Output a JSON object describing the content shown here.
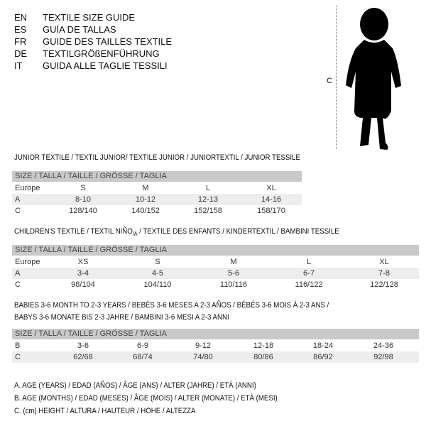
{
  "languages": [
    {
      "code": "EN",
      "title": "TEXTILE SIZE GUIDE"
    },
    {
      "code": "ES",
      "title": "GUÍA DE TALLAS"
    },
    {
      "code": "FR",
      "title": "GUIDE DES TAILLES TEXTILE"
    },
    {
      "code": "DE",
      "title": "TEXTILGRÖßENFÜHRUNG"
    },
    {
      "code": "IT",
      "title": "GUIDA ALLE TAGLIE TESSILI"
    }
  ],
  "figure": {
    "height_label": "C"
  },
  "size_header": "SIZE / TALLA / TAILLE / GRÖSSE / TAGLIA",
  "junior": {
    "title": "JUNIOR TEXTILE / TEXTIL JUNIOR/ TEXTILE JUNIOR / JUNIORTEXTIL / JUNIOR TESSILE",
    "rows": [
      {
        "label": "Europe",
        "cells": [
          "S",
          "M",
          "L",
          "XL"
        ]
      },
      {
        "label": "A",
        "cells": [
          "8-10",
          "10-12",
          "12-13",
          "14-16"
        ]
      },
      {
        "label": "C",
        "cells": [
          "128/140",
          "140/152",
          "152/158",
          "158/170"
        ]
      }
    ]
  },
  "children": {
    "title_a": "CHILDREN'S TEXTILE / TEXTIL NIÑO",
    "title_sub": "/A",
    "title_b": " / TEXTILE DES ENFANTS / KINDERTEXTIL / BAMBINI TESSILE",
    "rows": [
      {
        "label": "Europe",
        "cells": [
          "XS",
          "S",
          "M",
          "L",
          "XL"
        ]
      },
      {
        "label": "A",
        "cells": [
          "3-4",
          "4-5",
          "5-6",
          "6-7",
          "7-8"
        ]
      },
      {
        "label": "C",
        "cells": [
          "98/104",
          "104/110",
          "110/116",
          "116/122",
          "122/128"
        ]
      }
    ]
  },
  "babies": {
    "title_1": "BABIES 3-6 MONTH TO 2-3 YEARS / BEBÉS 3-6 MESES A 2-3 AÑOS / BÉBÉS 3-6 MOIS À 2-3 ANS /",
    "title_2": "BABYS 3-6 MONATE BIS 2-3 JAHRE / BAMBINI 3-6 MESI A 2-3 ANNI",
    "rows": [
      {
        "label": "B",
        "cells": [
          "3-6",
          "6-9",
          "9-12",
          "12-18",
          "18-24",
          "24-36"
        ]
      },
      {
        "label": "C",
        "cells": [
          "62/68",
          "68/74",
          "74/80",
          "80/86",
          "86/92",
          "92/98"
        ]
      }
    ]
  },
  "legend": [
    "A. AGE (YEARS) / EDAD (AÑOS) / ÂGE (ANS) / ALTER (JAHRE) / ETÀ (ANNI)",
    "B. AGE (MONTHS) / EDAD (MESES) / ÂGE (MOIS) / ALTER (MONATE) / ETÀ (MESI)",
    "C. (cm) HEIGHT / ALTURA / HAUTEUR / HÖHE / ALTEZZA"
  ]
}
